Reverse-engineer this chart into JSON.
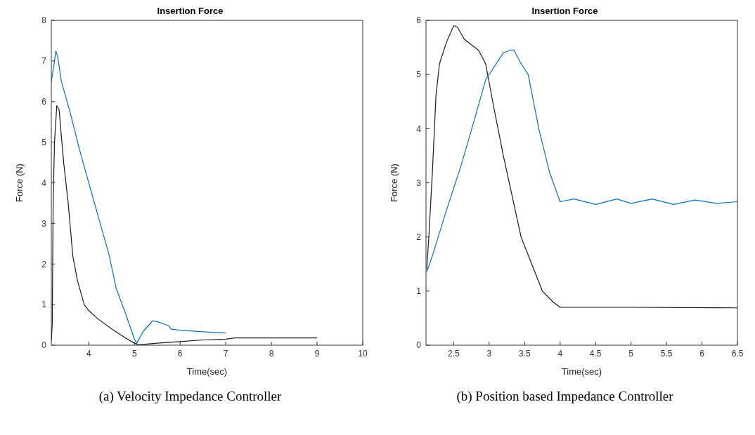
{
  "chart_data": [
    {
      "type": "line",
      "title": "Insertion Force",
      "xlabel": "Time(sec)",
      "ylabel": "Force (N)",
      "annotations": [
        "(a) Velocity Impedance Controller"
      ],
      "xlim": [
        3.18,
        10
      ],
      "xticks": [
        4,
        5,
        6,
        7,
        8,
        9,
        10
      ],
      "ylim": [
        0,
        8
      ],
      "yticks": [
        0,
        1,
        2,
        3,
        4,
        5,
        6,
        7,
        8
      ],
      "grid": false,
      "legend": false,
      "marker": "none",
      "line_style": "solid",
      "series": [
        {
          "color": "#1a1a1a",
          "x": [
            3.18,
            3.2,
            3.22,
            3.25,
            3.3,
            3.35,
            3.45,
            3.55,
            3.65,
            3.75,
            3.9,
            4.0,
            4.2,
            4.5,
            4.8,
            5.0,
            5.1,
            5.5,
            6.0,
            6.5,
            7.0,
            7.2,
            8,
            9
          ],
          "values": [
            0.1,
            0.5,
            3.5,
            5.0,
            5.9,
            5.8,
            4.5,
            3.5,
            2.2,
            1.6,
            1.0,
            0.85,
            0.65,
            0.4,
            0.18,
            0.05,
            0.01,
            0.05,
            0.09,
            0.13,
            0.15,
            0.18,
            0.18,
            0.18
          ]
        },
        {
          "color": "#0072bd",
          "x": [
            3.18,
            3.25,
            3.28,
            3.32,
            3.4,
            3.6,
            3.8,
            4.0,
            4.2,
            4.45,
            4.6,
            4.8,
            5.0,
            5.05,
            5.2,
            5.4,
            5.5,
            5.75,
            5.8,
            6.0,
            6.5,
            7.0
          ],
          "values": [
            6.5,
            7.0,
            7.25,
            7.1,
            6.5,
            5.7,
            4.8,
            4.0,
            3.2,
            2.2,
            1.4,
            0.8,
            0.15,
            0.05,
            0.35,
            0.6,
            0.58,
            0.48,
            0.4,
            0.37,
            0.33,
            0.3
          ]
        }
      ]
    },
    {
      "type": "line",
      "title": "Insertion Force",
      "xlabel": "Time(sec)",
      "ylabel": "Force (N)",
      "annotations": [
        "(b) Position based Impedance Controller"
      ],
      "xlim": [
        2.11,
        6.5
      ],
      "xticks": [
        2.5,
        3,
        3.5,
        4,
        4.5,
        5,
        5.5,
        6,
        6.5
      ],
      "ylim": [
        0,
        6
      ],
      "yticks": [
        0,
        1,
        2,
        3,
        4,
        5,
        6
      ],
      "grid": false,
      "legend": false,
      "marker": "none",
      "line_style": "solid",
      "series": [
        {
          "color": "#1a1a1a",
          "x": [
            2.12,
            2.15,
            2.2,
            2.25,
            2.3,
            2.4,
            2.5,
            2.55,
            2.65,
            2.75,
            2.85,
            2.95,
            3.05,
            3.2,
            3.3,
            3.45,
            3.6,
            3.75,
            3.9,
            4.0,
            5.0,
            6.5
          ],
          "values": [
            1.4,
            2.0,
            3.2,
            4.6,
            5.2,
            5.6,
            5.9,
            5.88,
            5.65,
            5.55,
            5.45,
            5.2,
            4.5,
            3.5,
            2.9,
            2.0,
            1.5,
            1.0,
            0.8,
            0.7,
            0.7,
            0.69
          ]
        },
        {
          "color": "#0072bd",
          "x": [
            2.12,
            2.2,
            2.4,
            2.6,
            2.8,
            2.95,
            3.1,
            3.2,
            3.3,
            3.35,
            3.45,
            3.55,
            3.7,
            3.85,
            4.0,
            4.2,
            4.5,
            4.8,
            5.0,
            5.3,
            5.6,
            5.9,
            6.2,
            6.5
          ],
          "values": [
            1.35,
            1.65,
            2.5,
            3.3,
            4.2,
            4.9,
            5.2,
            5.4,
            5.45,
            5.45,
            5.2,
            5.0,
            4.0,
            3.2,
            2.65,
            2.7,
            2.6,
            2.7,
            2.62,
            2.7,
            2.6,
            2.68,
            2.62,
            2.65
          ]
        }
      ]
    }
  ]
}
